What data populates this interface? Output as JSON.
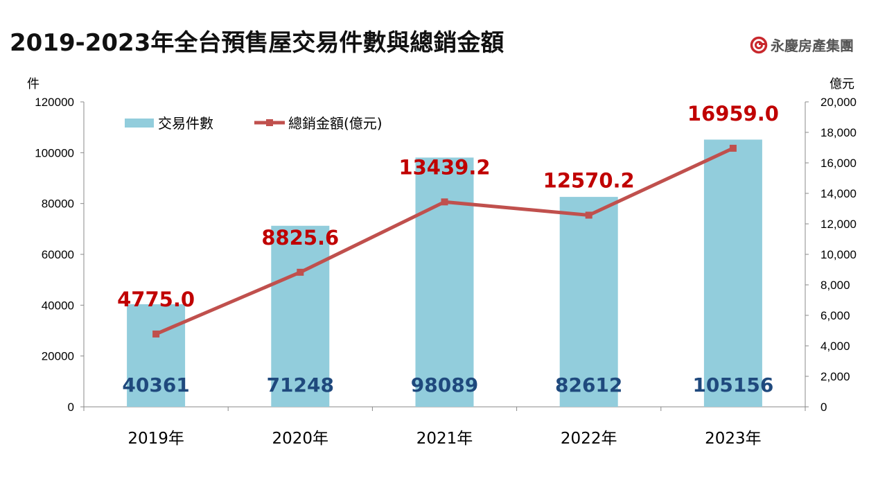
{
  "title": "2019-2023年全台預售屋交易件數與總銷金額",
  "logo": {
    "text": "永慶房產集團",
    "color": "#c8282d"
  },
  "chart_data": {
    "type": "bar+line",
    "title": "2019-2023年全台預售屋交易件數與總銷金額",
    "categories": [
      "2019年",
      "2020年",
      "2021年",
      "2022年",
      "2023年"
    ],
    "series": [
      {
        "name": "交易件數",
        "type": "bar",
        "axis": "left",
        "color": "#92cddc",
        "values": [
          40361,
          71248,
          98089,
          82612,
          105156
        ],
        "labels": [
          "40361",
          "71248",
          "98089",
          "82612",
          "105156"
        ],
        "label_color": "#1f497d"
      },
      {
        "name": "總銷金額(億元)",
        "type": "line",
        "axis": "right",
        "color": "#c0504d",
        "values": [
          4775.0,
          8825.6,
          13439.2,
          12570.2,
          16959.0
        ],
        "labels": [
          "4775.0",
          "8825.6",
          "13439.2",
          "12570.2",
          "16959.0"
        ],
        "label_color": "#c00000"
      }
    ],
    "y_left": {
      "label": "件",
      "range": [
        0,
        120000
      ],
      "ticks": [
        "0",
        "20000",
        "40000",
        "60000",
        "80000",
        "100000",
        "120000"
      ]
    },
    "y_right": {
      "label": "億元",
      "range": [
        0,
        20000
      ],
      "ticks": [
        "0",
        "2,000",
        "4,000",
        "6,000",
        "8,000",
        "10,000",
        "12,000",
        "14,000",
        "16,000",
        "18,000",
        "20,000"
      ]
    },
    "grid": false,
    "legend": "top-left"
  }
}
